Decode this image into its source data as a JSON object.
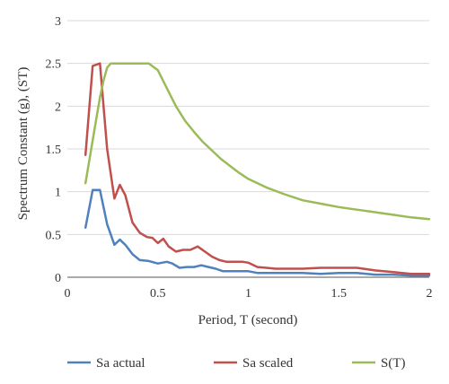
{
  "chart_data": {
    "type": "line",
    "xlabel": "Period, T (second)",
    "ylabel": "Spectrum Constant (g), (ST)",
    "xlim": [
      0,
      2
    ],
    "ylim": [
      0,
      3
    ],
    "x_ticks": [
      "0",
      "0.5",
      "1",
      "1.5",
      "2"
    ],
    "y_ticks": [
      "0",
      "0.5",
      "1",
      "1.5",
      "2",
      "2.5",
      "3"
    ],
    "grid": "horizontal",
    "legend_position": "bottom",
    "series": [
      {
        "name": "Sa actual",
        "color": "#4f81bd",
        "x": [
          0.1,
          0.14,
          0.18,
          0.22,
          0.26,
          0.29,
          0.32,
          0.36,
          0.4,
          0.45,
          0.5,
          0.55,
          0.58,
          0.62,
          0.66,
          0.7,
          0.74,
          0.78,
          0.82,
          0.86,
          0.9,
          0.95,
          1.0,
          1.05,
          1.1,
          1.2,
          1.3,
          1.4,
          1.5,
          1.6,
          1.7,
          1.8,
          1.9,
          2.0
        ],
        "values": [
          0.58,
          1.02,
          1.02,
          0.62,
          0.38,
          0.44,
          0.38,
          0.27,
          0.2,
          0.19,
          0.16,
          0.18,
          0.16,
          0.11,
          0.12,
          0.12,
          0.14,
          0.12,
          0.1,
          0.07,
          0.07,
          0.07,
          0.07,
          0.05,
          0.05,
          0.05,
          0.05,
          0.04,
          0.05,
          0.05,
          0.03,
          0.03,
          0.02,
          0.02
        ]
      },
      {
        "name": "Sa scaled",
        "color": "#c0504d",
        "x": [
          0.1,
          0.14,
          0.18,
          0.22,
          0.26,
          0.29,
          0.32,
          0.36,
          0.4,
          0.44,
          0.47,
          0.5,
          0.53,
          0.56,
          0.6,
          0.64,
          0.68,
          0.72,
          0.76,
          0.8,
          0.84,
          0.88,
          0.92,
          0.97,
          1.0,
          1.05,
          1.1,
          1.15,
          1.2,
          1.3,
          1.4,
          1.5,
          1.6,
          1.7,
          1.8,
          1.9,
          2.0
        ],
        "values": [
          1.43,
          2.47,
          2.5,
          1.5,
          0.92,
          1.08,
          0.96,
          0.64,
          0.52,
          0.47,
          0.46,
          0.4,
          0.45,
          0.36,
          0.3,
          0.32,
          0.32,
          0.36,
          0.3,
          0.24,
          0.2,
          0.18,
          0.18,
          0.18,
          0.17,
          0.12,
          0.11,
          0.1,
          0.1,
          0.1,
          0.11,
          0.11,
          0.11,
          0.08,
          0.06,
          0.04,
          0.04
        ]
      },
      {
        "name": "S(T)",
        "color": "#9bbb59",
        "x": [
          0.1,
          0.12,
          0.14,
          0.16,
          0.18,
          0.2,
          0.22,
          0.24,
          0.26,
          0.28,
          0.3,
          0.35,
          0.4,
          0.45,
          0.5,
          0.55,
          0.6,
          0.65,
          0.7,
          0.75,
          0.8,
          0.85,
          0.9,
          0.95,
          1.0,
          1.1,
          1.2,
          1.3,
          1.4,
          1.5,
          1.6,
          1.7,
          1.8,
          1.9,
          2.0
        ],
        "values": [
          1.1,
          1.35,
          1.6,
          1.85,
          2.1,
          2.3,
          2.45,
          2.5,
          2.5,
          2.5,
          2.5,
          2.5,
          2.5,
          2.5,
          2.42,
          2.21,
          2.0,
          1.83,
          1.7,
          1.58,
          1.48,
          1.38,
          1.3,
          1.22,
          1.15,
          1.05,
          0.97,
          0.9,
          0.86,
          0.82,
          0.79,
          0.76,
          0.73,
          0.7,
          0.68
        ]
      }
    ]
  }
}
